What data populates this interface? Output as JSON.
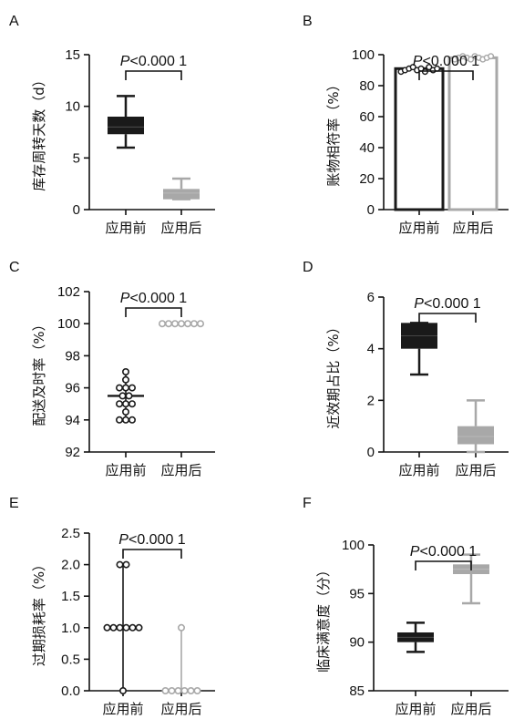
{
  "chart_data": [
    {
      "panel": "A",
      "type": "box",
      "ylabel": "库存周转天数（d）",
      "ylim": [
        0,
        15
      ],
      "yticks": [
        0,
        5,
        10,
        15
      ],
      "categories": [
        "应用前",
        "应用后"
      ],
      "p_label": "P<0.000 1",
      "series": [
        {
          "category": "应用前",
          "min": 6,
          "q1": 7.3,
          "median": 8,
          "q3": 9,
          "max": 11,
          "color": "#1a1a1a"
        },
        {
          "category": "应用后",
          "min": 1,
          "q1": 1,
          "median": 1.6,
          "q3": 2,
          "max": 3,
          "color": "#a8a8a8"
        }
      ]
    },
    {
      "panel": "B",
      "type": "bar",
      "ylabel": "账物相符率（%）",
      "ylim": [
        0,
        100
      ],
      "yticks": [
        0,
        20,
        40,
        60,
        80,
        100
      ],
      "categories": [
        "应用前",
        "应用后"
      ],
      "p_label": "P<0.000 1",
      "series": [
        {
          "category": "应用前",
          "value": 91,
          "points": [
            89,
            90,
            91,
            92,
            90,
            91,
            89,
            92,
            90,
            91
          ],
          "color": "#1a1a1a"
        },
        {
          "category": "应用后",
          "value": 98,
          "points": [
            97,
            98,
            99,
            98,
            97,
            99,
            98,
            97,
            98,
            99
          ],
          "color": "#a8a8a8"
        }
      ]
    },
    {
      "panel": "C",
      "type": "scatter",
      "ylabel": "配送及时率（%）",
      "ylim": [
        92,
        102
      ],
      "yticks": [
        92,
        94,
        96,
        98,
        100,
        102
      ],
      "categories": [
        "应用前",
        "应用后"
      ],
      "p_label": "P<0.000 1",
      "series": [
        {
          "category": "应用前",
          "points": [
            97,
            96.5,
            96,
            96,
            96,
            95.5,
            95.5,
            95,
            95,
            95,
            94.5,
            94,
            94,
            94
          ],
          "min": 94,
          "max": 97,
          "mean": 95.5,
          "color": "#1a1a1a"
        },
        {
          "category": "应用后",
          "points": [
            100,
            100,
            100,
            100,
            100,
            100,
            100
          ],
          "min": 100,
          "max": 100,
          "mean": 100,
          "color": "#a8a8a8"
        }
      ]
    },
    {
      "panel": "D",
      "type": "box",
      "ylabel": "近效期占比（%）",
      "ylim": [
        0,
        6
      ],
      "yticks": [
        0,
        2,
        4,
        6
      ],
      "categories": [
        "应用前",
        "应用后"
      ],
      "p_label": "P<0.000 1",
      "series": [
        {
          "category": "应用前",
          "min": 3,
          "q1": 4,
          "median": 4.5,
          "q3": 5,
          "max": 5,
          "color": "#1a1a1a"
        },
        {
          "category": "应用后",
          "min": 0,
          "q1": 0.3,
          "median": 0.6,
          "q3": 1,
          "max": 2,
          "color": "#a8a8a8"
        }
      ]
    },
    {
      "panel": "E",
      "type": "scatter",
      "ylabel": "过期损耗率（%）",
      "ylim": [
        0,
        2.5
      ],
      "yticks": [
        0,
        0.5,
        1.0,
        1.5,
        2.0,
        2.5
      ],
      "categories": [
        "应用前",
        "应用后"
      ],
      "p_label": "P<0.000 1",
      "series": [
        {
          "category": "应用前",
          "points": [
            2,
            2,
            1,
            1,
            1,
            1,
            1,
            1,
            0
          ],
          "min": 0,
          "max": 2,
          "mean": 1,
          "color": "#1a1a1a"
        },
        {
          "category": "应用后",
          "points": [
            1,
            0,
            0,
            0,
            0,
            0,
            0
          ],
          "min": 0,
          "max": 1,
          "mean": 0,
          "color": "#a8a8a8"
        }
      ]
    },
    {
      "panel": "F",
      "type": "box",
      "ylabel": "临床满意度（分）",
      "ylim": [
        85,
        100
      ],
      "yticks": [
        85,
        90,
        95,
        100
      ],
      "categories": [
        "应用前",
        "应用后"
      ],
      "p_label": "P<0.000 1",
      "series": [
        {
          "category": "应用前",
          "min": 89,
          "q1": 90,
          "median": 90.5,
          "q3": 91,
          "max": 92,
          "color": "#1a1a1a"
        },
        {
          "category": "应用后",
          "min": 94,
          "q1": 97,
          "median": 97.5,
          "q3": 98,
          "max": 99,
          "color": "#a8a8a8"
        }
      ]
    }
  ]
}
